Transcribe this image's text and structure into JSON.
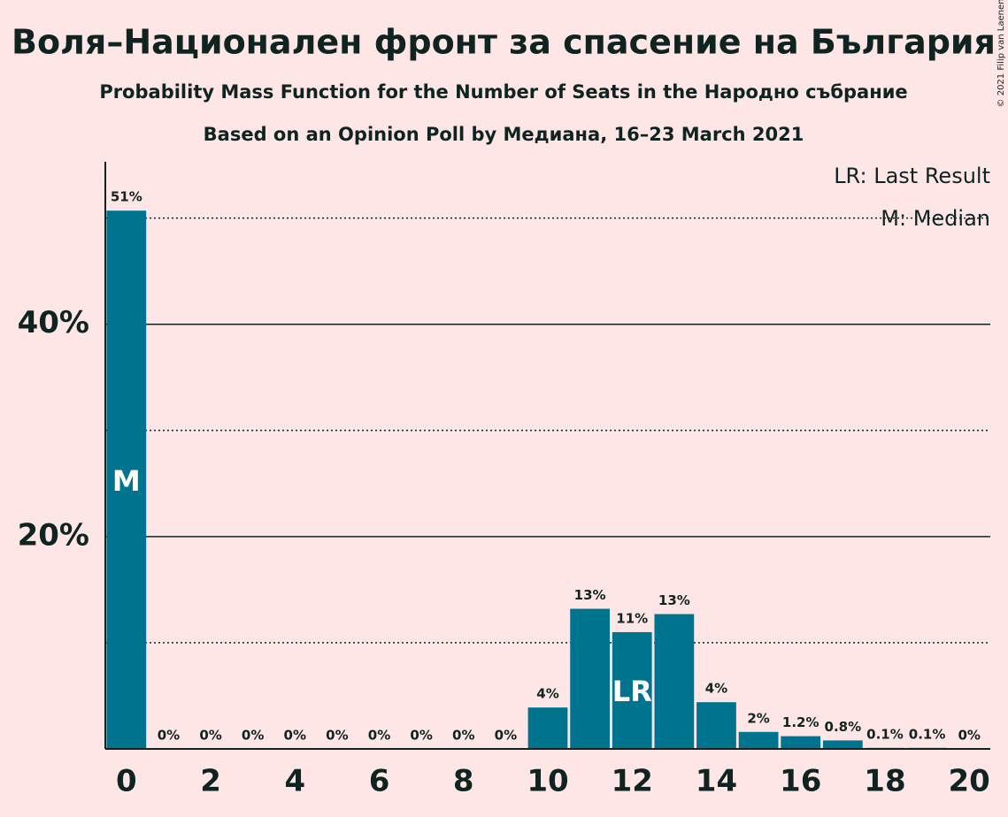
{
  "chart_data": {
    "type": "bar",
    "title": "Воля–Национален фронт за спасение на България",
    "subtitle": "Probability Mass Function for the Number of Seats in the Народно събрание",
    "subtitle2": "Based on an Opinion Poll by Медиана, 16–23 March 2021",
    "copyright": "© 2021 Filip van Laenen",
    "x": [
      0,
      1,
      2,
      3,
      4,
      5,
      6,
      7,
      8,
      9,
      10,
      11,
      12,
      13,
      14,
      15,
      16,
      17,
      18,
      19,
      20
    ],
    "values": [
      50.7,
      0,
      0,
      0,
      0,
      0,
      0,
      0,
      0,
      0,
      3.9,
      13.2,
      11.0,
      12.7,
      4.4,
      1.6,
      1.2,
      0.8,
      0.1,
      0.1,
      0
    ],
    "value_labels": [
      "51%",
      "0%",
      "0%",
      "0%",
      "0%",
      "0%",
      "0%",
      "0%",
      "0%",
      "0%",
      "4%",
      "13%",
      "11%",
      "13%",
      "4%",
      "2%",
      "1.2%",
      "0.8%",
      "0.1%",
      "0.1%",
      "0%"
    ],
    "color": "#00738f",
    "xlim": [
      -0.5,
      20.5
    ],
    "xticks": [
      0,
      2,
      4,
      6,
      8,
      10,
      12,
      14,
      16,
      18,
      20
    ],
    "ylim": [
      0,
      55.3
    ],
    "yticks": [
      {
        "value": 20,
        "label": "20%"
      },
      {
        "value": 40,
        "label": "40%"
      }
    ],
    "minor_yticks": [
      10,
      30,
      50
    ],
    "grid": true,
    "annotations": [
      {
        "text": "M",
        "x": 0
      },
      {
        "text": "LR",
        "x": 12
      }
    ],
    "legend": [
      "LR: Last Result",
      "M: Median"
    ]
  }
}
